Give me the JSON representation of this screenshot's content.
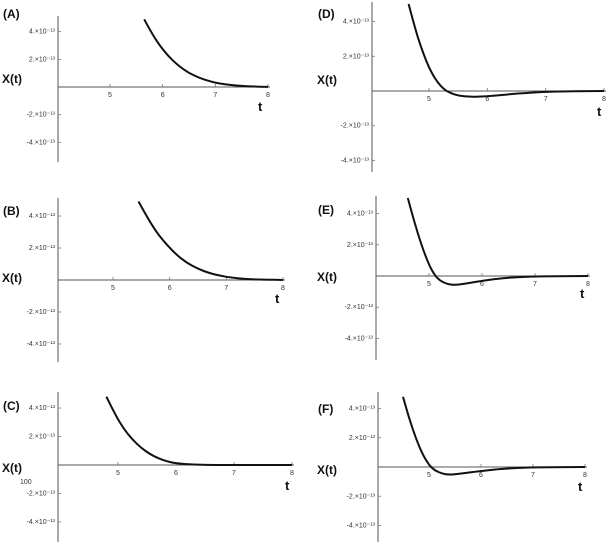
{
  "chart_data": [
    {
      "panel": "(A)",
      "type": "line",
      "ylabel": "X(t)",
      "xlabel": "t",
      "xticks": [
        "5",
        "6",
        "7",
        "8"
      ],
      "xlim": [
        4.3,
        8.1
      ],
      "yticks": [
        "4.×10⁻¹³",
        "2.×10⁻¹³",
        "-2.×10⁻¹³",
        "-4.×10⁻¹³"
      ],
      "ylim": [
        -5.2e-13,
        5.2e-13
      ],
      "series": [
        {
          "x": [
            5.65,
            5.8,
            5.95,
            6.1,
            6.3,
            6.5,
            6.7,
            6.9,
            7.1,
            7.3,
            7.5,
            7.7,
            8.0
          ],
          "values": [
            5.1e-13,
            4e-13,
            3.1e-13,
            2.35e-13,
            1.6e-13,
            1.05e-13,
            6.8e-14,
            4.2e-14,
            2.5e-14,
            1.4e-14,
            8e-15,
            4e-15,
            1e-15
          ]
        }
      ]
    },
    {
      "panel": "(B)",
      "type": "line",
      "ylabel": "X(t)",
      "xlabel": "t",
      "xticks": [
        "5",
        "6",
        "7",
        "8"
      ],
      "xlim": [
        4.3,
        8.1
      ],
      "yticks": [
        "4.×10⁻¹³",
        "2.×10⁻¹³",
        "-2.×10⁻¹³",
        "-4.×10⁻¹³"
      ],
      "ylim": [
        -5.2e-13,
        5.2e-13
      ],
      "series": [
        {
          "x": [
            5.45,
            5.6,
            5.75,
            5.9,
            6.1,
            6.3,
            6.5,
            6.7,
            6.9,
            7.1,
            7.3,
            7.5,
            7.7,
            8.0
          ],
          "values": [
            5.1e-13,
            4.1e-13,
            3.2e-13,
            2.5e-13,
            1.7e-13,
            1.12e-13,
            7.2e-14,
            4.5e-14,
            2.7e-14,
            1.5e-14,
            8e-15,
            4e-15,
            2e-15,
            0.0
          ]
        }
      ]
    },
    {
      "panel": "(C)",
      "type": "line",
      "ylabel": "X(t)",
      "xlabel": "t",
      "xticks": [
        "5",
        "6",
        "7",
        "8"
      ],
      "xlim": [
        4.3,
        8.1
      ],
      "yticks": [
        "4.×10⁻¹³",
        "2.×10⁻¹³",
        "-2.×10⁻¹³",
        "-4.×10⁻¹³"
      ],
      "ylim": [
        -5.2e-13,
        5.2e-13
      ],
      "annotation": "100",
      "series": [
        {
          "x": [
            4.8,
            4.95,
            5.1,
            5.25,
            5.4,
            5.55,
            5.7,
            5.85,
            6.0,
            6.3,
            6.6,
            7.0,
            7.5,
            8.0
          ],
          "values": [
            5e-13,
            3.7e-13,
            2.65e-13,
            1.85e-13,
            1.25e-13,
            8e-14,
            4.8e-14,
            2.6e-14,
            1.2e-14,
            3e-15,
            0.0,
            0.0,
            0.0,
            0.0
          ]
        }
      ]
    },
    {
      "panel": "(D)",
      "type": "line",
      "ylabel": "X(t)",
      "xlabel": "t",
      "xticks": [
        "5",
        "6",
        "7",
        "8"
      ],
      "xlim": [
        4.3,
        8.1
      ],
      "yticks": [
        "4.×10⁻¹³",
        "2.×10⁻¹³",
        "-2.×10⁻¹³",
        "-4.×10⁻¹³"
      ],
      "ylim": [
        -5.2e-13,
        5.2e-13
      ],
      "series": [
        {
          "x": [
            4.65,
            4.75,
            4.85,
            4.95,
            5.05,
            5.15,
            5.25,
            5.35,
            5.5,
            5.7,
            6.0,
            6.3,
            6.6,
            7.0,
            7.5,
            8.0
          ],
          "values": [
            5.2e-13,
            3.9e-13,
            2.75e-13,
            1.8e-13,
            1.05e-13,
            5e-14,
            1.2e-14,
            -1e-14,
            -2.8e-14,
            -3.5e-14,
            -3.2e-14,
            -2.2e-14,
            -1.3e-14,
            -5e-15,
            -1e-15,
            0.0
          ]
        }
      ]
    },
    {
      "panel": "(E)",
      "type": "line",
      "ylabel": "X(t)",
      "xlabel": "t",
      "xticks": [
        "5",
        "6",
        "7",
        "8"
      ],
      "xlim": [
        4.3,
        8.1
      ],
      "yticks": [
        "4.×10⁻¹³",
        "2.×10⁻¹³",
        "-2.×10⁻¹³",
        "-4.×10⁻¹³"
      ],
      "ylim": [
        -5.2e-13,
        5.2e-13
      ],
      "series": [
        {
          "x": [
            4.6,
            4.7,
            4.8,
            4.9,
            5.0,
            5.1,
            5.2,
            5.35,
            5.5,
            5.7,
            5.9,
            6.2,
            6.5,
            6.9,
            7.4,
            8.0
          ],
          "values": [
            5.2e-13,
            3.9e-13,
            2.7e-13,
            1.65e-13,
            7.5e-14,
            1e-14,
            -3e-14,
            -5.5e-14,
            -6e-14,
            -5e-14,
            -3.8e-14,
            -2.2e-14,
            -1.1e-14,
            -4e-15,
            -1e-15,
            0.0
          ]
        }
      ]
    },
    {
      "panel": "(F)",
      "type": "line",
      "ylabel": "X(t)",
      "xlabel": "t",
      "xticks": [
        "5",
        "6",
        "7",
        "8"
      ],
      "xlim": [
        4.3,
        8.1
      ],
      "yticks": [
        "4.×10⁻¹³",
        "2.×10⁻¹³",
        "-2.×10⁻¹³",
        "-4.×10⁻¹³"
      ],
      "ylim": [
        -5.2e-13,
        5.2e-13
      ],
      "series": [
        {
          "x": [
            4.5,
            4.6,
            4.7,
            4.8,
            4.9,
            5.0,
            5.1,
            5.25,
            5.4,
            5.6,
            5.8,
            6.1,
            6.4,
            6.8,
            7.3,
            8.0
          ],
          "values": [
            5e-13,
            3.7e-13,
            2.55e-13,
            1.55e-13,
            7.5e-14,
            1.5e-14,
            -2.2e-14,
            -4.8e-14,
            -5.5e-14,
            -4.8e-14,
            -3.8e-14,
            -2.4e-14,
            -1.3e-14,
            -5e-15,
            -1e-15,
            0.0
          ]
        }
      ]
    }
  ]
}
